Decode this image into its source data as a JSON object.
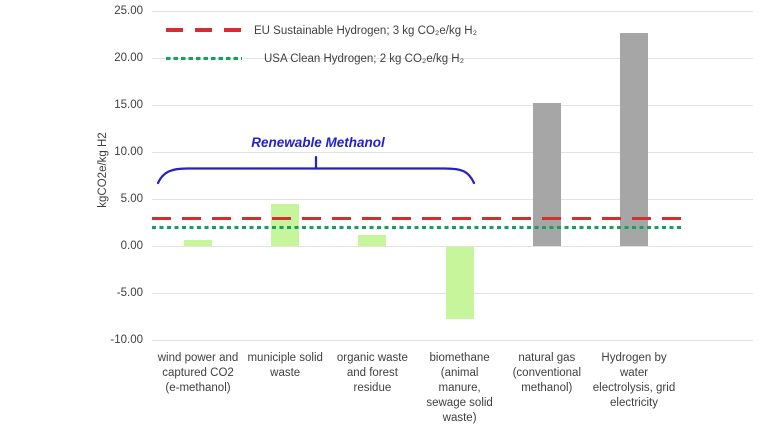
{
  "chart_data": {
    "type": "bar",
    "title": "",
    "xlabel": "",
    "ylabel": "kgCO2e/kg H2",
    "ylim": [
      -10,
      25
    ],
    "yticks": [
      25,
      20,
      15,
      10,
      5,
      0,
      -5,
      -10
    ],
    "ytick_labels": [
      "25.00",
      "20.00",
      "15.00",
      "10.00",
      "5.00",
      "0.00",
      "-5.00",
      "-10.00"
    ],
    "grid": "horizontal",
    "legend_position": "top-left-inside",
    "categories": [
      "wind power and\ncaptured CO2\n(e-methanol)",
      "municiple solid\nwaste",
      "organic waste\nand forest\nresidue",
      "biomethane\n(animal\nmanure,\nsewage solid\nwaste)",
      "natural gas\n(conventional\nmethanol)",
      "Hydrogen by\nwater\nelectrolysis, grid\nelectricity"
    ],
    "values": [
      0.7,
      4.5,
      1.2,
      -7.7,
      15.3,
      22.7
    ],
    "bar_colors": [
      "#c6f59b",
      "#c6f59b",
      "#c6f59b",
      "#c6f59b",
      "#a6a6a6",
      "#a6a6a6"
    ],
    "ref_lines": [
      {
        "label": "EU Sustainable Hydrogen; 3 kg CO₂e/kg H₂",
        "value": 3,
        "color": "#d23030",
        "style": "dashed"
      },
      {
        "label": "USA Clean Hydrogen; 2 kg CO₂e/kg H₂",
        "value": 2,
        "color": "#12a25e",
        "style": "dotted"
      }
    ],
    "annotation": {
      "text": "Renewable Methanol",
      "color": "#2222cc",
      "spans_categories": [
        0,
        3
      ]
    }
  }
}
